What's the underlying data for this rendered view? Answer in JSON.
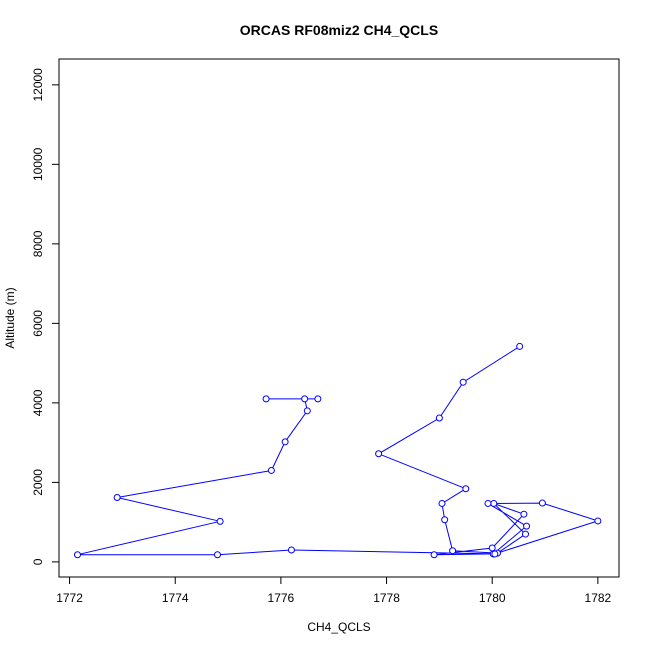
{
  "chart_data": {
    "type": "line",
    "title": "ORCAS RF08miz2 CH4_QCLS",
    "xlabel": "CH4_QCLS",
    "ylabel": "Altitude (m)",
    "xlim": [
      1771.8,
      1782.4
    ],
    "ylim": [
      -380,
      12650
    ],
    "xticks": [
      1772,
      1774,
      1776,
      1778,
      1780,
      1782
    ],
    "yticks": [
      0,
      2000,
      4000,
      6000,
      8000,
      10000,
      12000
    ],
    "grid": false,
    "series": [
      {
        "color": "#0000ff",
        "points": [
          [
            1780.52,
            5420
          ],
          [
            1779.45,
            4520
          ],
          [
            1779.0,
            3620
          ],
          [
            1777.85,
            2720
          ],
          [
            1779.5,
            1840
          ],
          [
            1779.05,
            1470
          ],
          [
            1779.1,
            1060
          ],
          [
            1779.25,
            280
          ],
          [
            1780.1,
            220
          ],
          [
            1780.63,
            700
          ],
          [
            1780.03,
            1470
          ],
          [
            1780.6,
            1200
          ],
          [
            1780.0,
            350
          ],
          [
            1778.9,
            180
          ],
          [
            1780.02,
            200
          ],
          [
            1780.65,
            900
          ],
          [
            1779.92,
            1470
          ],
          [
            1780.95,
            1480
          ],
          [
            1782.0,
            1030
          ],
          [
            1780.05,
            200
          ],
          [
            1776.2,
            300
          ],
          [
            1774.8,
            180
          ],
          [
            1772.15,
            180
          ],
          [
            1774.85,
            1020
          ],
          [
            1772.9,
            1620
          ],
          [
            1775.82,
            2300
          ],
          [
            1776.08,
            3020
          ],
          [
            1776.5,
            3800
          ],
          [
            1776.45,
            4100
          ],
          [
            1775.72,
            4100
          ],
          [
            1776.7,
            4100
          ]
        ]
      }
    ]
  }
}
